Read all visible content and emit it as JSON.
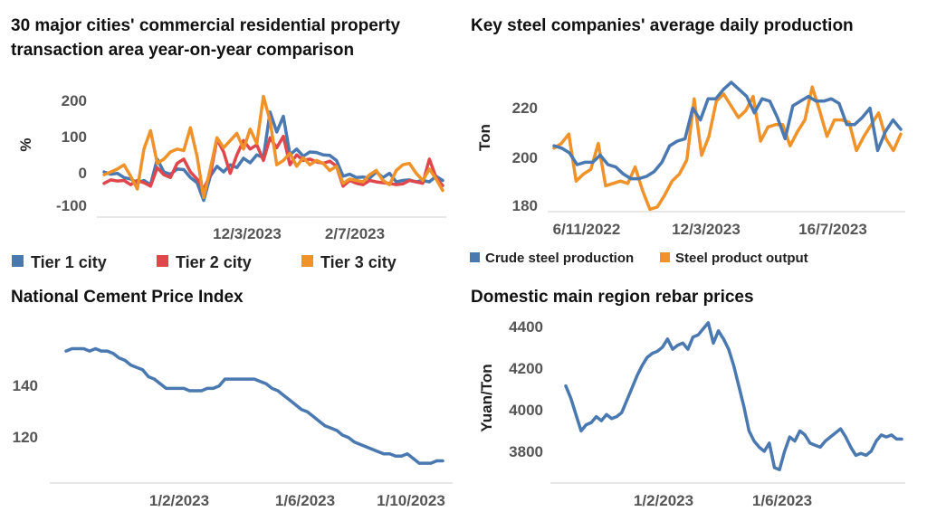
{
  "colors": {
    "blue": "#4a78b0",
    "red": "#e0474c",
    "orange": "#f0922a"
  },
  "chart_data": [
    {
      "id": "c1",
      "type": "line",
      "title": [
        "30 major cities' commercial residential property",
        "transaction area year-on-year comparison"
      ],
      "ylabel": "%",
      "ylim": [
        -130,
        270
      ],
      "yticks": [
        -100,
        0,
        100,
        200
      ],
      "xticklabels": [
        "12/3/2023",
        "2/7/2023"
      ],
      "legend": "bottom",
      "series": [
        {
          "name": "Tier 1 city",
          "color": "#4a78b0",
          "values": [
            0,
            -8,
            -5,
            -20,
            -25,
            -38,
            -30,
            -45,
            45,
            0,
            -8,
            10,
            8,
            -20,
            -38,
            -100,
            -15,
            20,
            0,
            25,
            15,
            48,
            32,
            60,
            50,
            210,
            140,
            195,
            60,
            80,
            55,
            70,
            68,
            60,
            58,
            40,
            -15,
            -8,
            -20,
            -18,
            -22,
            0,
            -20,
            -5,
            -35,
            -30,
            -28,
            -35,
            -30,
            -35,
            -15,
            -30
          ]
        },
        {
          "name": "Tier 2 city",
          "color": "#e0474c",
          "values": [
            -40,
            -28,
            -32,
            -30,
            -45,
            -30,
            -38,
            -50,
            15,
            -10,
            -20,
            30,
            45,
            0,
            -25,
            -60,
            -10,
            115,
            70,
            -5,
            60,
            110,
            80,
            95,
            40,
            120,
            85,
            125,
            25,
            60,
            40,
            45,
            35,
            30,
            38,
            20,
            -50,
            -30,
            -40,
            -45,
            -30,
            -35,
            -38,
            -40,
            -45,
            -42,
            -30,
            -35,
            -40,
            45,
            -20,
            -48
          ]
        },
        {
          "name": "Tier 3 city",
          "color": "#f0922a",
          "values": [
            -10,
            0,
            10,
            25,
            -15,
            -60,
            80,
            145,
            30,
            45,
            70,
            80,
            75,
            155,
            55,
            -90,
            10,
            120,
            85,
            110,
            135,
            80,
            150,
            100,
            265,
            180,
            25,
            40,
            65,
            20,
            50,
            25,
            40,
            30,
            5,
            20,
            -40,
            -25,
            -30,
            -35,
            -10,
            5,
            -30,
            -45,
            5,
            25,
            30,
            -5,
            -30,
            10,
            -25,
            -65
          ]
        }
      ]
    },
    {
      "id": "c2",
      "type": "line",
      "title": [
        "Key steel companies' average daily production"
      ],
      "ylabel": "Ton",
      "ylim": [
        178,
        238
      ],
      "yticks": [
        180,
        200,
        220
      ],
      "xticklabels": [
        "6/11/2022",
        "12/3/2023",
        "16/7/2023"
      ],
      "legend": "bottom",
      "series": [
        {
          "name": "Crude steel production",
          "color": "#4a78b0",
          "values": [
            206,
            205,
            203,
            198,
            199,
            199,
            202,
            198,
            197,
            194,
            192,
            192,
            193,
            195,
            199,
            206,
            208,
            209,
            222,
            217,
            226,
            226,
            230,
            233,
            230,
            227,
            220,
            226,
            225,
            218,
            209,
            223,
            225,
            227,
            225,
            225,
            226,
            224,
            215,
            215,
            218,
            222,
            204,
            212,
            217,
            213
          ]
        },
        {
          "name": "Steel product output",
          "color": "#f0922a",
          "values": [
            205,
            207,
            211,
            191,
            194,
            196,
            207,
            189,
            190,
            191,
            190,
            197,
            187,
            179,
            180,
            185,
            191,
            194,
            200,
            226,
            202,
            210,
            225,
            228,
            223,
            218,
            221,
            227,
            208,
            214,
            215,
            215,
            206,
            212,
            217,
            231,
            221,
            210,
            217,
            217,
            216,
            204,
            210,
            215,
            220,
            209,
            204,
            211
          ]
        }
      ]
    },
    {
      "id": "c3",
      "type": "line",
      "title": [
        "National Cement Price Index"
      ],
      "ylabel": "",
      "ylim": [
        100,
        160
      ],
      "yticks": [
        120,
        140
      ],
      "xticklabels": [
        "1/2/2023",
        "1/6/2023",
        "1/10/2023"
      ],
      "legend": "none",
      "series": [
        {
          "name": "",
          "color": "#4a78b0",
          "values": [
            153,
            154,
            154,
            154,
            153,
            154,
            153,
            153,
            152,
            150,
            149,
            147,
            146,
            145,
            142,
            141,
            139,
            137,
            137,
            137,
            137,
            136,
            136,
            136,
            137,
            137,
            138,
            141,
            141,
            141,
            141,
            141,
            141,
            140,
            139,
            137,
            136,
            134,
            132,
            130,
            128,
            127,
            125,
            123,
            121,
            120,
            119,
            117,
            116,
            114,
            113,
            112,
            111,
            110,
            109,
            109,
            108,
            108,
            109,
            107,
            105,
            105,
            105,
            106,
            106
          ]
        }
      ]
    },
    {
      "id": "c4",
      "type": "line",
      "title": [
        "Domestic main region rebar prices"
      ],
      "ylabel": "Yuan/Ton",
      "ylim": [
        3660,
        4440
      ],
      "yticks": [
        3800,
        4000,
        4200,
        4400
      ],
      "xticklabels": [
        "1/2/2023",
        "1/6/2023"
      ],
      "legend": "none",
      "series": [
        {
          "name": "",
          "color": "#4a78b0",
          "values": [
            4100,
            4040,
            3960,
            3880,
            3910,
            3920,
            3950,
            3930,
            3960,
            3940,
            3950,
            3970,
            4030,
            4090,
            4150,
            4200,
            4240,
            4260,
            4270,
            4290,
            4330,
            4280,
            4300,
            4310,
            4280,
            4340,
            4350,
            4380,
            4410,
            4310,
            4370,
            4330,
            4280,
            4200,
            4100,
            4000,
            3880,
            3830,
            3800,
            3780,
            3820,
            3700,
            3690,
            3780,
            3850,
            3830,
            3880,
            3860,
            3820,
            3810,
            3800,
            3830,
            3850,
            3870,
            3890,
            3850,
            3800,
            3760,
            3770,
            3760,
            3780,
            3830,
            3860,
            3850,
            3860,
            3840,
            3840
          ]
        }
      ]
    }
  ]
}
